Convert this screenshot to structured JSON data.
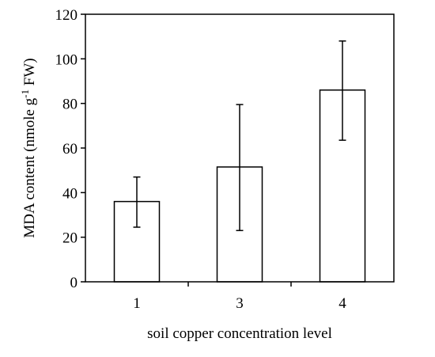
{
  "chart_data": {
    "type": "bar",
    "categories": [
      "1",
      "3",
      "4"
    ],
    "values": [
      36,
      51.5,
      86
    ],
    "error_low": [
      24.5,
      23,
      63.5
    ],
    "error_high": [
      47,
      79.5,
      108
    ],
    "xlabel": "soil copper concentration level",
    "ylabel": {
      "prefix": "MDA content (nmole g",
      "superscript": "-1",
      "suffix": " FW)"
    },
    "ylim": [
      0,
      120
    ],
    "yticks": [
      "0",
      "20",
      "40",
      "60",
      "80",
      "100",
      "120"
    ],
    "grid": false
  }
}
